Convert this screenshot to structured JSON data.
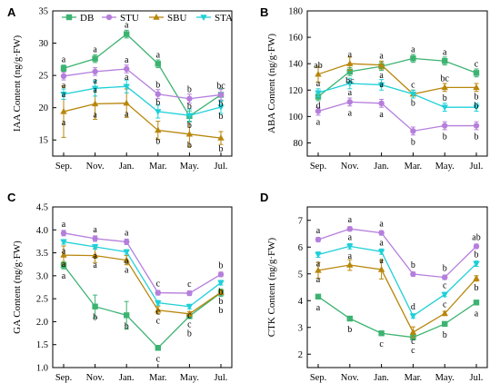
{
  "chart_data": {
    "type": "line",
    "legend": {
      "placement": "top-left of panel A",
      "items": [
        "DB",
        "STU",
        "SBU",
        "STA"
      ]
    },
    "series_colors": {
      "DB": "#3cb371",
      "STU": "#b57edc",
      "SBU": "#b8860b",
      "STA": "#1fd0d8"
    },
    "panels": [
      {
        "label": "A",
        "ylabel": "IAA Content (ng/g·FW)",
        "categories": [
          "Sep.",
          "Nov.",
          "Jan.",
          "Mar.",
          "May.",
          "Jul."
        ],
        "ylim": [
          12.5,
          35
        ],
        "yticks": [
          15,
          20,
          25,
          30,
          35
        ],
        "series": [
          {
            "name": "DB",
            "values": [
              26.1,
              27.6,
              31.4,
              26.8,
              18.7,
              22.0
            ],
            "err": [
              0.5,
              0.6,
              0.6,
              0.6,
              0.8,
              1.0
            ],
            "sig": [
              "a",
              "a",
              "a",
              "a",
              "b",
              "bc"
            ]
          },
          {
            "name": "STU",
            "values": [
              24.9,
              25.6,
              26.0,
              22.1,
              21.4,
              22.0
            ],
            "err": [
              0.6,
              0.6,
              0.6,
              0.7,
              0.7,
              0.8
            ],
            "sig": [
              "a",
              "a",
              "a",
              "b",
              "b",
              "b"
            ]
          },
          {
            "name": "SBU",
            "values": [
              19.4,
              20.6,
              20.7,
              16.5,
              15.9,
              15.3
            ],
            "err": [
              4.0,
              2.4,
              2.2,
              1.4,
              1.9,
              1.0
            ],
            "sig": [
              "a",
              "a",
              "a",
              "b",
              "b",
              "b"
            ]
          },
          {
            "name": "STA",
            "values": [
              22.1,
              23.0,
              23.3,
              19.4,
              18.8,
              20.1
            ],
            "err": [
              0.8,
              1.2,
              1.0,
              1.0,
              1.0,
              1.0
            ],
            "sig": [
              "a",
              "a",
              "a",
              "b",
              "b",
              "b"
            ]
          }
        ]
      },
      {
        "label": "B",
        "ylabel": "ABA Content (ng/g·FW)",
        "categories": [
          "Sep.",
          "Nov.",
          "Jan.",
          "Mar.",
          "May.",
          "Jul."
        ],
        "ylim": [
          70,
          180
        ],
        "yticks": [
          80,
          100,
          120,
          140,
          160,
          180
        ],
        "series": [
          {
            "name": "DB",
            "values": [
              115,
              134,
              138,
              144,
              142,
              133
            ],
            "err": [
              3,
              3,
              3,
              3,
              3,
              3
            ],
            "sig": [
              "d",
              "bc",
              "a",
              "a",
              "a",
              "c"
            ]
          },
          {
            "name": "STU",
            "values": [
              104,
              111,
              110,
              89,
              93,
              93
            ],
            "err": [
              3,
              3,
              3,
              3,
              3,
              3
            ],
            "sig": [
              "a",
              "a",
              "a",
              "b",
              "b",
              "b"
            ]
          },
          {
            "name": "SBU",
            "values": [
              132,
              140,
              139,
              117,
              122,
              122
            ],
            "err": [
              6,
              5,
              3,
              3,
              3,
              3
            ],
            "sig": [
              "ab",
              "a",
              "a",
              "c",
              "bc",
              "b"
            ]
          },
          {
            "name": "STA",
            "values": [
              118,
              125,
              124,
              117,
              107,
              107
            ],
            "err": [
              3,
              4,
              4,
              3,
              3,
              3
            ],
            "sig": [
              "a",
              "a",
              "a",
              "b",
              "b",
              "b"
            ]
          }
        ]
      },
      {
        "label": "C",
        "ylabel": "GA Content (ng/g·FW)",
        "categories": [
          "Sep.",
          "Nov.",
          "Jan.",
          "Mar.",
          "May.",
          "Jul."
        ],
        "ylim": [
          1.0,
          4.5
        ],
        "yticks": [
          1.0,
          1.5,
          2.0,
          2.5,
          3.0,
          3.5,
          4.0,
          4.5
        ],
        "series": [
          {
            "name": "DB",
            "values": [
              3.23,
              2.33,
              2.14,
              1.43,
              2.12,
              2.63
            ],
            "err": [
              0.08,
              0.25,
              0.3,
              0.05,
              0.05,
              0.08
            ],
            "sig": [
              "a",
              "b",
              "b",
              "c",
              "b",
              "b"
            ]
          },
          {
            "name": "STU",
            "values": [
              3.93,
              3.81,
              3.74,
              2.63,
              2.62,
              3.03
            ],
            "err": [
              0.06,
              0.06,
              0.06,
              0.05,
              0.05,
              0.05
            ],
            "sig": [
              "a",
              "a",
              "a",
              "c",
              "c",
              "b"
            ]
          },
          {
            "name": "SBU",
            "values": [
              3.45,
              3.44,
              3.34,
              2.25,
              2.17,
              2.64
            ],
            "err": [
              0.2,
              0.15,
              0.1,
              0.08,
              0.05,
              0.05
            ],
            "sig": [
              "a",
              "a",
              "a",
              "c",
              "c",
              "b"
            ]
          },
          {
            "name": "STA",
            "values": [
              3.74,
              3.63,
              3.52,
              2.41,
              2.33,
              2.85
            ],
            "err": [
              0.05,
              0.05,
              0.05,
              0.05,
              0.05,
              0.05
            ],
            "sig": [
              "a",
              "a",
              "a",
              "c",
              "c",
              "b"
            ]
          }
        ]
      },
      {
        "label": "D",
        "ylabel": "CTK Content (ng/g·FW)",
        "categories": [
          "Sep.",
          "Nov.",
          "Jan.",
          "Mar.",
          "May.",
          "Jul."
        ],
        "ylim": [
          1.5,
          7.5
        ],
        "yticks": [
          2,
          3,
          4,
          5,
          6,
          7
        ],
        "series": [
          {
            "name": "DB",
            "values": [
              4.15,
              3.33,
              2.78,
              2.63,
              3.13,
              3.93
            ],
            "err": [
              0.06,
              0.06,
              0.06,
              0.06,
              0.08,
              0.08
            ],
            "sig": [
              "a",
              "b",
              "c",
              "c",
              "b",
              "a"
            ]
          },
          {
            "name": "STU",
            "values": [
              6.28,
              6.68,
              6.53,
              4.99,
              4.87,
              6.03
            ],
            "err": [
              0.08,
              0.08,
              0.08,
              0.08,
              0.08,
              0.08
            ],
            "sig": [
              "a",
              "a",
              "a",
              "b",
              "b",
              "ab"
            ]
          },
          {
            "name": "SBU",
            "values": [
              5.13,
              5.33,
              5.16,
              2.82,
              3.52,
              4.83
            ],
            "err": [
              0.3,
              0.2,
              0.35,
              0.2,
              0.08,
              0.1
            ],
            "sig": [
              "a",
              "a",
              "a",
              "c",
              "c",
              "b"
            ]
          },
          {
            "name": "STA",
            "values": [
              5.72,
              6.03,
              5.83,
              3.43,
              4.23,
              5.38
            ],
            "err": [
              0.1,
              0.1,
              0.1,
              0.08,
              0.08,
              0.1
            ],
            "sig": [
              "a",
              "a",
              "a",
              "d",
              "c",
              "b"
            ]
          }
        ]
      }
    ]
  }
}
